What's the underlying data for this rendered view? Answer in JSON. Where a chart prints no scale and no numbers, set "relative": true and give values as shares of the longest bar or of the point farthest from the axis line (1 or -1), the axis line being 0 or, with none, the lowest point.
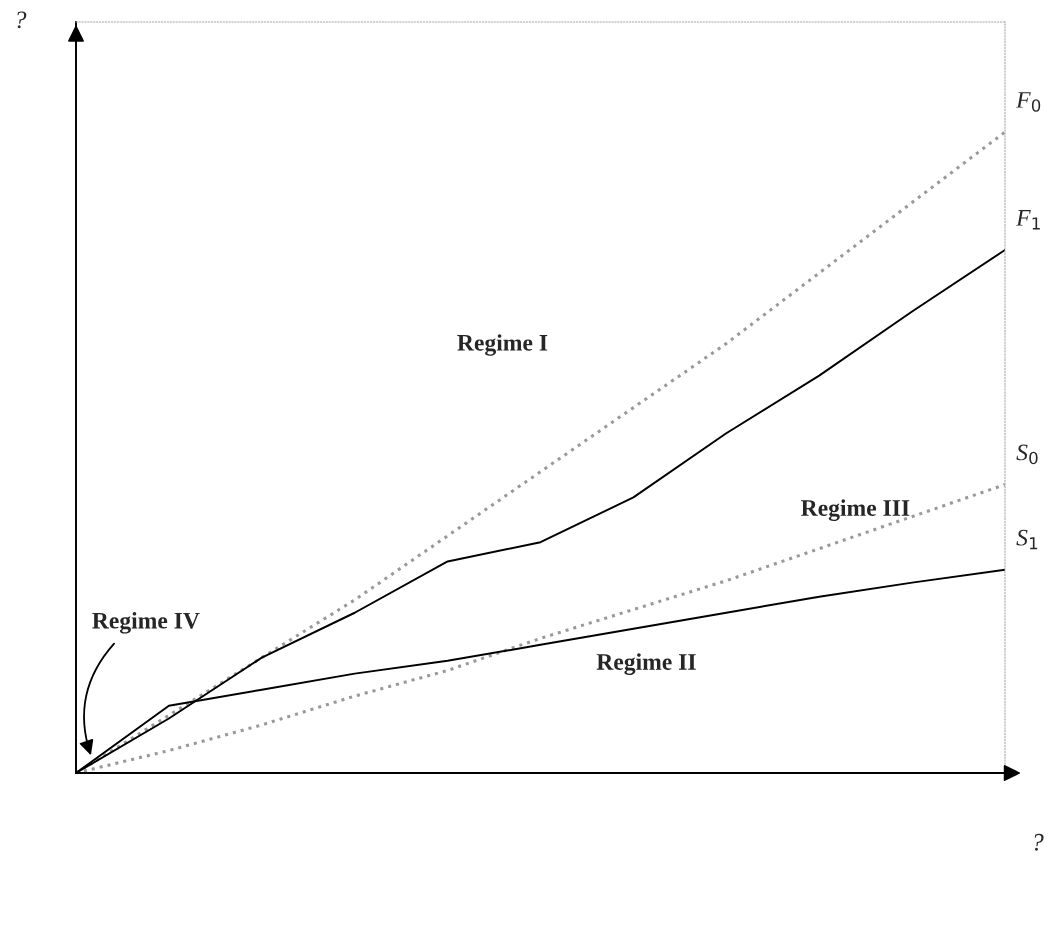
{
  "chart_data": {
    "type": "line",
    "relative": true,
    "xlabel": "?",
    "ylabel": "?",
    "categories": [
      null,
      null,
      null,
      null,
      null,
      null,
      null,
      null,
      null,
      null,
      null
    ],
    "series": [
      {
        "name": "F$_{0}$",
        "color": "#999999",
        "line_style": "dotted",
        "values": [
          0,
          0.09,
          0.18,
          0.27,
          0.37,
          0.47,
          0.57,
          0.67,
          0.78,
          0.89,
          1.0
        ]
      },
      {
        "name": "F$_{1}$",
        "color": "#000000",
        "line_style": "solid",
        "values": [
          0,
          0.085,
          0.18,
          0.25,
          0.33,
          0.36,
          0.43,
          0.53,
          0.62,
          0.72,
          0.816
        ]
      },
      {
        "name": "S$_{0}$",
        "color": "#999999",
        "line_style": "dotted",
        "values": [
          0,
          0.035,
          0.075,
          0.12,
          0.16,
          0.21,
          0.255,
          0.3,
          0.35,
          0.4,
          0.45
        ]
      },
      {
        "name": "S$_{1}$",
        "color": "#000000",
        "line_style": "solid",
        "values": [
          0,
          0.105,
          0.13,
          0.155,
          0.175,
          0.2,
          0.225,
          0.25,
          0.275,
          0.297,
          0.317
        ]
      }
    ],
    "annotations": [
      "Regime I",
      "Regime II",
      "Regime III",
      "Regime IV"
    ],
    "grid": false,
    "legend": false,
    "marker": "none"
  }
}
